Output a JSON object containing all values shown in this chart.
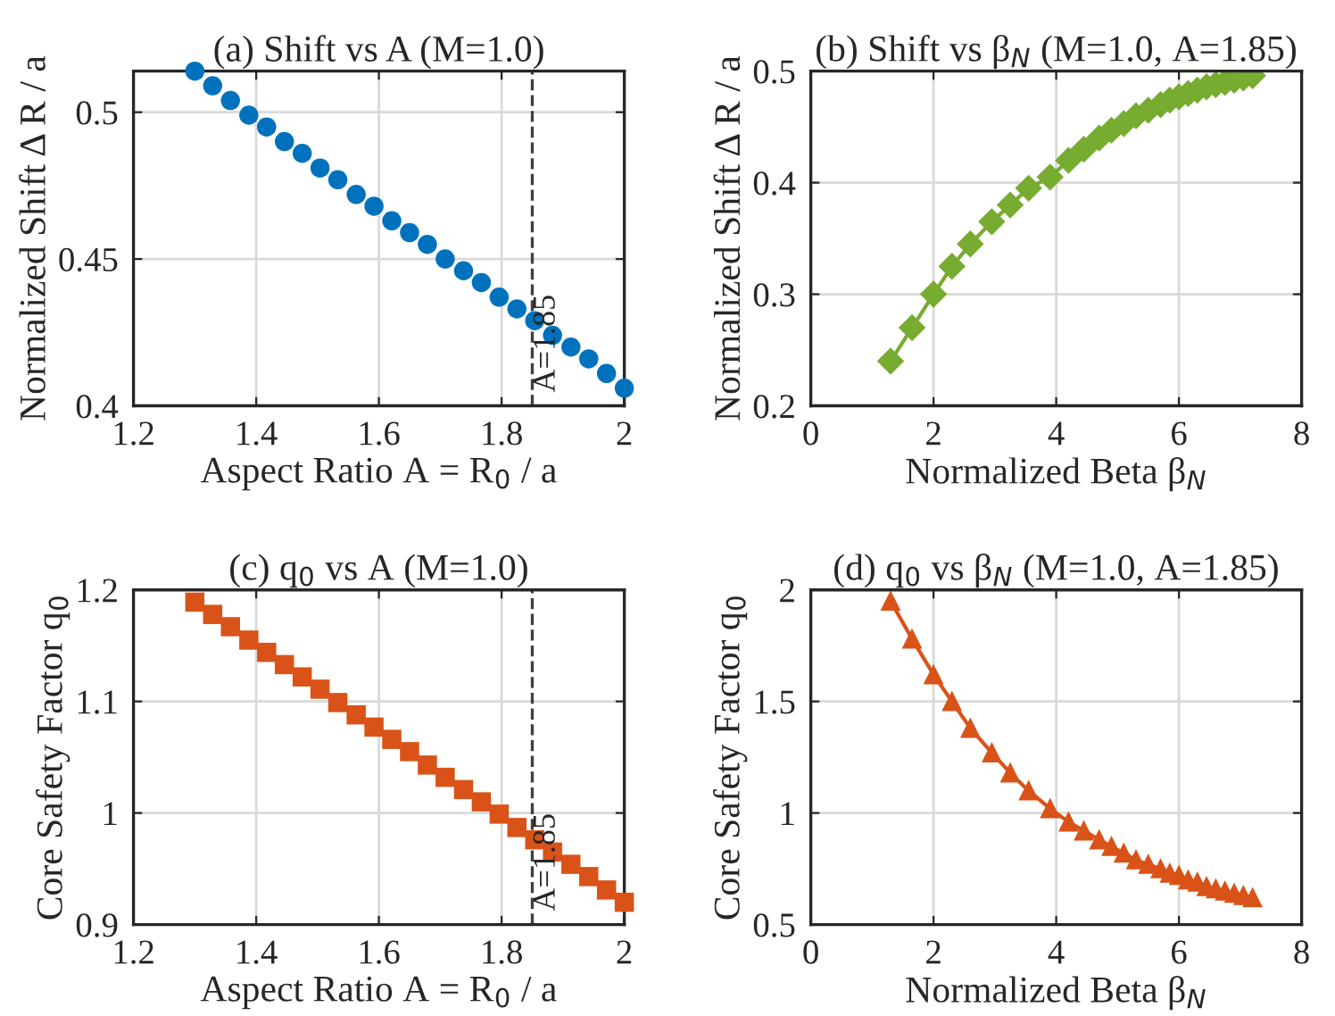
{
  "chart_data": [
    {
      "type": "scatter",
      "title": "(a) Shift vs A (M=1.0)",
      "xlabel": "Aspect Ratio A = R$_{0}$ / a",
      "ylabel": "Normalized Shift Δ R / a",
      "x": [
        1.3,
        1.329,
        1.358,
        1.388,
        1.417,
        1.446,
        1.475,
        1.504,
        1.533,
        1.563,
        1.592,
        1.621,
        1.65,
        1.679,
        1.708,
        1.738,
        1.767,
        1.796,
        1.825,
        1.854,
        1.883,
        1.913,
        1.942,
        1.971,
        2.0
      ],
      "series": [
        {
          "color": "#0072bd",
          "values": [
            0.514,
            0.509,
            0.504,
            0.499,
            0.495,
            0.49,
            0.486,
            0.481,
            0.477,
            0.472,
            0.468,
            0.463,
            0.459,
            0.455,
            0.45,
            0.446,
            0.442,
            0.437,
            0.433,
            0.429,
            0.424,
            0.42,
            0.416,
            0.411,
            0.406
          ]
        }
      ],
      "marker": "circle",
      "xlim": [
        1.2,
        2.0
      ],
      "xticks": [
        1.2,
        1.4,
        1.6,
        1.8,
        2
      ],
      "ylim": [
        0.4,
        0.514
      ],
      "yticks": [
        0.4,
        0.45,
        0.5
      ],
      "grid": true,
      "ref_lines": [
        {
          "axis": "x",
          "value": 1.85,
          "label": "A=1.85",
          "color": "#404040",
          "line_style": "dashed"
        }
      ]
    },
    {
      "type": "line",
      "title": "(b) Shift vs β$_{N}$ (M=1.0, A=1.85)",
      "xlabel": "Normalized Beta β$_{N}$",
      "ylabel": "Normalized Shift Δ R / a",
      "x": [
        1.3,
        1.65,
        2.0,
        2.3,
        2.6,
        2.95,
        3.25,
        3.55,
        3.9,
        4.2,
        4.45,
        4.7,
        4.9,
        5.1,
        5.3,
        5.5,
        5.7,
        5.85,
        6.0,
        6.15,
        6.3,
        6.45,
        6.6,
        6.75,
        6.9,
        7.05,
        7.2
      ],
      "series": [
        {
          "color": "#77ac30",
          "values": [
            0.24,
            0.27,
            0.3,
            0.325,
            0.345,
            0.365,
            0.38,
            0.395,
            0.405,
            0.42,
            0.43,
            0.44,
            0.447,
            0.453,
            0.46,
            0.465,
            0.47,
            0.474,
            0.477,
            0.48,
            0.483,
            0.486,
            0.488,
            0.49,
            0.492,
            0.494,
            0.496
          ]
        }
      ],
      "marker": "diamond",
      "xlim": [
        0,
        8
      ],
      "xticks": [
        0,
        2,
        4,
        6,
        8
      ],
      "ylim": [
        0.2,
        0.5
      ],
      "yticks": [
        0.2,
        0.3,
        0.4,
        0.5
      ],
      "grid": true
    },
    {
      "type": "scatter",
      "title": "(c) q$_{0}$ vs A (M=1.0)",
      "xlabel": "Aspect Ratio A = R$_{0}$ / a",
      "ylabel": "Core Safety Factor q$_{0}$",
      "x": [
        1.3,
        1.329,
        1.358,
        1.388,
        1.417,
        1.446,
        1.475,
        1.504,
        1.533,
        1.563,
        1.592,
        1.621,
        1.65,
        1.679,
        1.708,
        1.738,
        1.767,
        1.796,
        1.825,
        1.854,
        1.883,
        1.913,
        1.942,
        1.971,
        2.0
      ],
      "series": [
        {
          "color": "#d95319",
          "values": [
            1.189,
            1.178,
            1.167,
            1.155,
            1.144,
            1.133,
            1.122,
            1.111,
            1.099,
            1.088,
            1.077,
            1.066,
            1.055,
            1.043,
            1.032,
            1.021,
            1.01,
            0.999,
            0.987,
            0.976,
            0.965,
            0.954,
            0.943,
            0.931,
            0.92
          ]
        }
      ],
      "marker": "square",
      "xlim": [
        1.2,
        2.0
      ],
      "xticks": [
        1.2,
        1.4,
        1.6,
        1.8,
        2
      ],
      "ylim": [
        0.9,
        1.2
      ],
      "yticks": [
        0.9,
        1,
        1.1,
        1.2
      ],
      "grid": true,
      "ref_lines": [
        {
          "axis": "x",
          "value": 1.85,
          "label": "A=1.85",
          "color": "#404040",
          "line_style": "dashed"
        }
      ]
    },
    {
      "type": "line",
      "title": "(d) q$_{0}$ vs β$_{N}$ (M=1.0, A=1.85)",
      "xlabel": "Normalized Beta β$_{N}$",
      "ylabel": "Core Safety Factor q$_{0}$",
      "x": [
        1.3,
        1.65,
        2.0,
        2.3,
        2.6,
        2.95,
        3.25,
        3.55,
        3.9,
        4.2,
        4.45,
        4.7,
        4.9,
        5.1,
        5.3,
        5.5,
        5.7,
        5.85,
        6.0,
        6.15,
        6.3,
        6.45,
        6.6,
        6.75,
        6.9,
        7.05,
        7.2
      ],
      "series": [
        {
          "color": "#d95319",
          "values": [
            1.95,
            1.78,
            1.62,
            1.5,
            1.38,
            1.27,
            1.18,
            1.1,
            1.02,
            0.96,
            0.92,
            0.88,
            0.85,
            0.82,
            0.79,
            0.77,
            0.75,
            0.73,
            0.72,
            0.7,
            0.69,
            0.67,
            0.66,
            0.65,
            0.64,
            0.63,
            0.62
          ]
        }
      ],
      "marker": "triangle",
      "xlim": [
        0,
        8
      ],
      "xticks": [
        0,
        2,
        4,
        6,
        8
      ],
      "ylim": [
        0.5,
        2
      ],
      "yticks": [
        0.5,
        1,
        1.5,
        2
      ],
      "grid": true
    }
  ]
}
